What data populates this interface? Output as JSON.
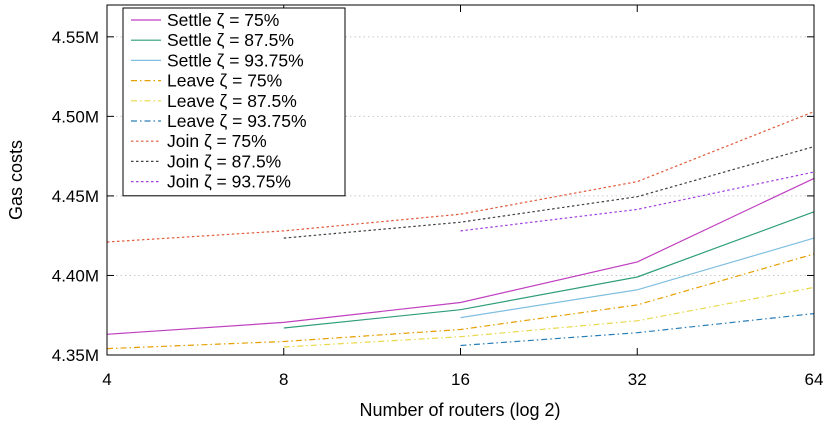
{
  "chart_data": {
    "type": "line",
    "x_scale": "log2",
    "x": [
      4,
      8,
      16,
      32,
      64
    ],
    "x_tick_labels": [
      "4",
      "8",
      "16",
      "32",
      "64"
    ],
    "xlabel": "Number of routers (log 2)",
    "ylabel": "Gas costs",
    "ylim": [
      4350000,
      4570000
    ],
    "y_ticks": [
      4350000,
      4400000,
      4450000,
      4500000,
      4550000
    ],
    "y_tick_labels": [
      "4.35M",
      "4.40M",
      "4.45M",
      "4.50M",
      "4.55M"
    ],
    "grid": true,
    "legend_position": "top-left",
    "series": [
      {
        "name": "Settle ζ = 75%",
        "color": "#c040c0",
        "dash": "solid",
        "values": [
          4363000,
          4370500,
          4383000,
          4408500,
          4461000
        ]
      },
      {
        "name": "Settle ζ = 87.5%",
        "color": "#2e9e7a",
        "dash": "solid",
        "values": [
          null,
          4367000,
          4378500,
          4399000,
          4440000
        ]
      },
      {
        "name": "Settle ζ = 93.75%",
        "color": "#7fbfdf",
        "dash": "solid",
        "values": [
          null,
          null,
          4373500,
          4391000,
          4423500
        ]
      },
      {
        "name": "Leave ζ = 75%",
        "color": "#e69f00",
        "dash": "dashdot",
        "values": [
          4354000,
          4358500,
          4366000,
          4381500,
          4413500
        ]
      },
      {
        "name": "Leave ζ = 87.5%",
        "color": "#e8d84a",
        "dash": "dashdot",
        "values": [
          null,
          4355000,
          4361500,
          4371500,
          4392500
        ]
      },
      {
        "name": "Leave ζ = 93.75%",
        "color": "#2a7fb8",
        "dash": "dashdot",
        "values": [
          null,
          null,
          4356000,
          4364000,
          4376000
        ]
      },
      {
        "name": "Join ζ = 75%",
        "color": "#e05a3a",
        "dash": "dotted",
        "values": [
          4421000,
          4428000,
          4438500,
          4459000,
          4503000
        ]
      },
      {
        "name": "Join ζ = 87.5%",
        "color": "#404040",
        "dash": "dotted",
        "values": [
          null,
          4423500,
          4433500,
          4449500,
          4481000
        ]
      },
      {
        "name": "Join ζ = 93.75%",
        "color": "#a040e0",
        "dash": "dotted",
        "values": [
          null,
          null,
          4428000,
          4441500,
          4465000
        ]
      }
    ]
  }
}
